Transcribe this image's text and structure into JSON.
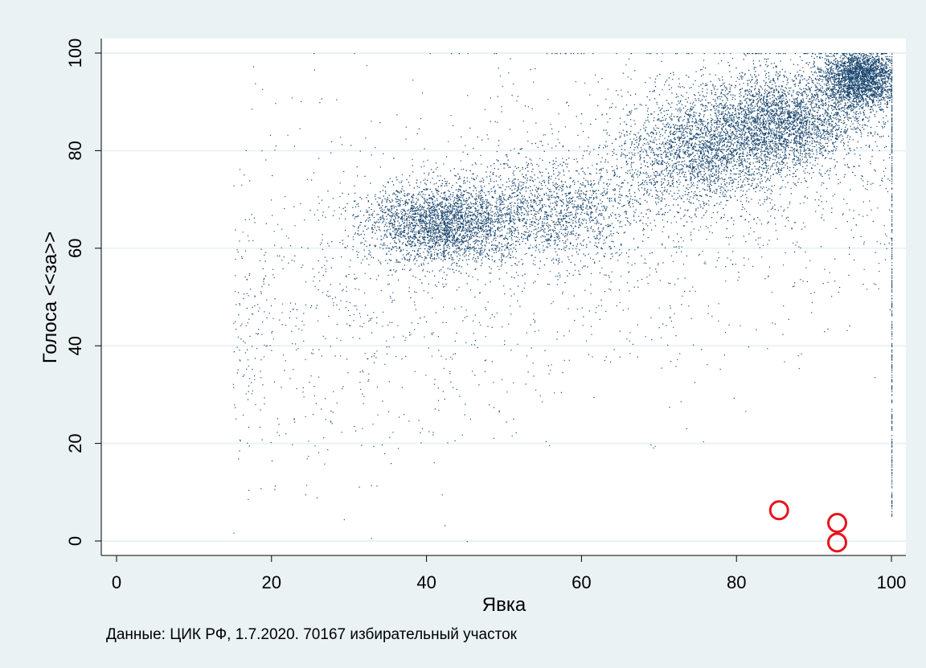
{
  "chart_data": {
    "type": "scatter",
    "xlabel": "Явка",
    "ylabel": "Голоса <<за>>",
    "xlim": [
      0,
      100
    ],
    "ylim": [
      0,
      100
    ],
    "x_ticks": [
      "0",
      "20",
      "40",
      "60",
      "80",
      "100"
    ],
    "y_ticks": [
      "0",
      "20",
      "40",
      "60",
      "80",
      "100"
    ],
    "grid": "horizontal",
    "note": "Данные: ЦИК РФ, 1.7.2020. 70167 избирательный участок",
    "point_color": "#1a476f",
    "highlight_color": "#e8141c",
    "clusters": [
      {
        "center": [
          42,
          65
        ],
        "spread": [
          5,
          4
        ],
        "weight": 0.22
      },
      {
        "center": [
          56,
          68
        ],
        "spread": [
          6,
          5
        ],
        "weight": 0.12
      },
      {
        "center": [
          75,
          80
        ],
        "spread": [
          5,
          6
        ],
        "weight": 0.18
      },
      {
        "center": [
          86,
          86
        ],
        "spread": [
          5,
          5
        ],
        "weight": 0.26
      },
      {
        "center": [
          96,
          95
        ],
        "spread": [
          2.5,
          3
        ],
        "weight": 0.22
      }
    ],
    "highlighted_points": [
      {
        "x": 85.5,
        "y": 6.3
      },
      {
        "x": 93,
        "y": 3.7
      },
      {
        "x": 93,
        "y": -0.3
      }
    ]
  }
}
